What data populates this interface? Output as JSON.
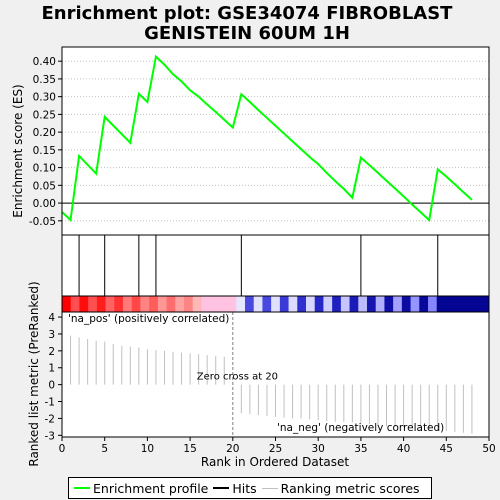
{
  "title": "Enrichment plot: GSE34074 FIBROBLAST\nGENISTEIN 60UM 1H",
  "chart_data": [
    {
      "type": "line",
      "panel": "enrichment-profile",
      "ylabel": "Enrichment score (ES)",
      "ylim": [
        -0.09,
        0.44
      ],
      "yticks": [
        "-0.05",
        "0.00",
        "0.05",
        "0.10",
        "0.15",
        "0.20",
        "0.25",
        "0.30",
        "0.35",
        "0.40"
      ],
      "ytick_values": [
        -0.05,
        0.0,
        0.05,
        0.1,
        0.15,
        0.2,
        0.25,
        0.3,
        0.35,
        0.4
      ],
      "series": [
        {
          "name": "Enrichment profile",
          "color": "#00ff00",
          "x": [
            0,
            1,
            2,
            4,
            5,
            8,
            9,
            10,
            11,
            12,
            13,
            14,
            15,
            16,
            17,
            18,
            19,
            20,
            21,
            22,
            23,
            24,
            25,
            26,
            27,
            28,
            29,
            30,
            31,
            32,
            33,
            34,
            35,
            36,
            37,
            38,
            39,
            40,
            41,
            42,
            43,
            44,
            45,
            46,
            47,
            48
          ],
          "y": [
            -0.025,
            -0.048,
            0.133,
            0.083,
            0.243,
            0.17,
            0.308,
            0.285,
            0.413,
            0.39,
            0.363,
            0.343,
            0.318,
            0.3,
            0.278,
            0.257,
            0.235,
            0.213,
            0.307,
            0.285,
            0.262,
            0.24,
            0.218,
            0.196,
            0.174,
            0.152,
            0.13,
            0.11,
            0.085,
            0.062,
            0.04,
            0.015,
            0.128,
            0.107,
            0.085,
            0.063,
            0.041,
            0.019,
            -0.004,
            -0.026,
            -0.048,
            0.095,
            0.075,
            0.053,
            0.031,
            0.009
          ]
        }
      ],
      "baseline": 0.0
    },
    {
      "type": "hits",
      "panel": "hits",
      "series_name": "Hits",
      "color": "#000000",
      "x": [
        2,
        5,
        9,
        11,
        21,
        35,
        44
      ]
    },
    {
      "type": "heatmap",
      "panel": "ranking-color-bar",
      "n": 49,
      "red_end": 20,
      "colors": [
        "#ff0000",
        "#ff4f50",
        "#ff0d0d",
        "#ff5050",
        "#ff1e1e",
        "#ff6262",
        "#ff3333",
        "#ff7b7b",
        "#ff4747",
        "#ff8585",
        "#ff5c5c",
        "#ff9797",
        "#ff6e6e",
        "#ffa2a2",
        "#ff8585",
        "#ffb7b7",
        "#ffc2e0",
        "#ffc2e0",
        "#ffc2e0",
        "#ffc2e0",
        "#e6e6ff",
        "#4949e0",
        "#e0e0ff",
        "#4848e0",
        "#e0e0ff",
        "#3a3ad8",
        "#dcdcff",
        "#3030d0",
        "#d7d7ff",
        "#2828c8",
        "#cfcfff",
        "#2020c0",
        "#c6c6ff",
        "#1a1ab8",
        "#bbbbff",
        "#1515b0",
        "#b0b0ff",
        "#1010a8",
        "#a3a3ff",
        "#0c0ca0",
        "#9595ff",
        "#08089a",
        "#8585ff",
        "#050594",
        "#050594",
        "#050594",
        "#050594",
        "#050594",
        "#050594"
      ]
    },
    {
      "type": "bar",
      "panel": "ranked-list-metric",
      "series_name": "Ranking metric scores",
      "color": "#c0c0c0",
      "xlabel": "Rank in Ordered Dataset",
      "ylabel": "Ranked list metric (PreRanked)",
      "ylim": [
        -3.1,
        4.3
      ],
      "yticks": [
        "-3",
        "-2",
        "-1",
        "0",
        "1",
        "2",
        "3",
        "4"
      ],
      "ytick_values": [
        -3,
        -2,
        -1,
        0,
        1,
        2,
        3,
        4
      ],
      "xlim": [
        0,
        50
      ],
      "xticks": [
        "0",
        "5",
        "10",
        "15",
        "20",
        "25",
        "30",
        "35",
        "40",
        "45",
        "50"
      ],
      "xtick_values": [
        0,
        5,
        10,
        15,
        20,
        25,
        30,
        35,
        40,
        45,
        50
      ],
      "x": [
        1,
        2,
        3,
        4,
        5,
        6,
        7,
        8,
        9,
        10,
        11,
        12,
        13,
        14,
        15,
        16,
        17,
        18,
        19,
        21,
        22,
        23,
        24,
        25,
        26,
        27,
        28,
        29,
        30,
        31,
        32,
        33,
        34,
        35,
        36,
        37,
        38,
        39,
        40,
        41,
        42,
        43,
        44,
        45,
        46,
        47,
        48
      ],
      "values": [
        2.9,
        2.8,
        2.7,
        2.6,
        2.55,
        2.4,
        2.3,
        2.25,
        2.2,
        2.1,
        2.05,
        2.0,
        1.95,
        1.9,
        1.85,
        1.8,
        1.75,
        1.7,
        1.65,
        -1.7,
        -1.75,
        -1.8,
        -1.85,
        -1.9,
        -1.95,
        -2.0,
        -2.0,
        -2.05,
        -2.1,
        -2.15,
        -2.2,
        -2.2,
        -2.25,
        -2.3,
        -2.35,
        -2.4,
        -2.45,
        -2.5,
        -2.5,
        -2.55,
        -2.6,
        -2.65,
        -2.7,
        -2.75,
        -2.8,
        -2.85,
        -2.9
      ],
      "annotations": {
        "pos_label": "'na_pos' (positively correlated)",
        "neg_label": "'na_neg' (negatively correlated)",
        "zero_cross": "Zero cross at 20",
        "zero_cross_x": 20
      }
    }
  ],
  "legend": [
    {
      "label": "Enrichment profile",
      "color": "#00ff00"
    },
    {
      "label": "Hits",
      "color": "#000000"
    },
    {
      "label": "Ranking metric scores",
      "color": "#c0c0c0"
    }
  ],
  "colors": {
    "pos_label": "#cc0000",
    "neg_label": "#0000cc",
    "grid": "#c0c0c0"
  }
}
